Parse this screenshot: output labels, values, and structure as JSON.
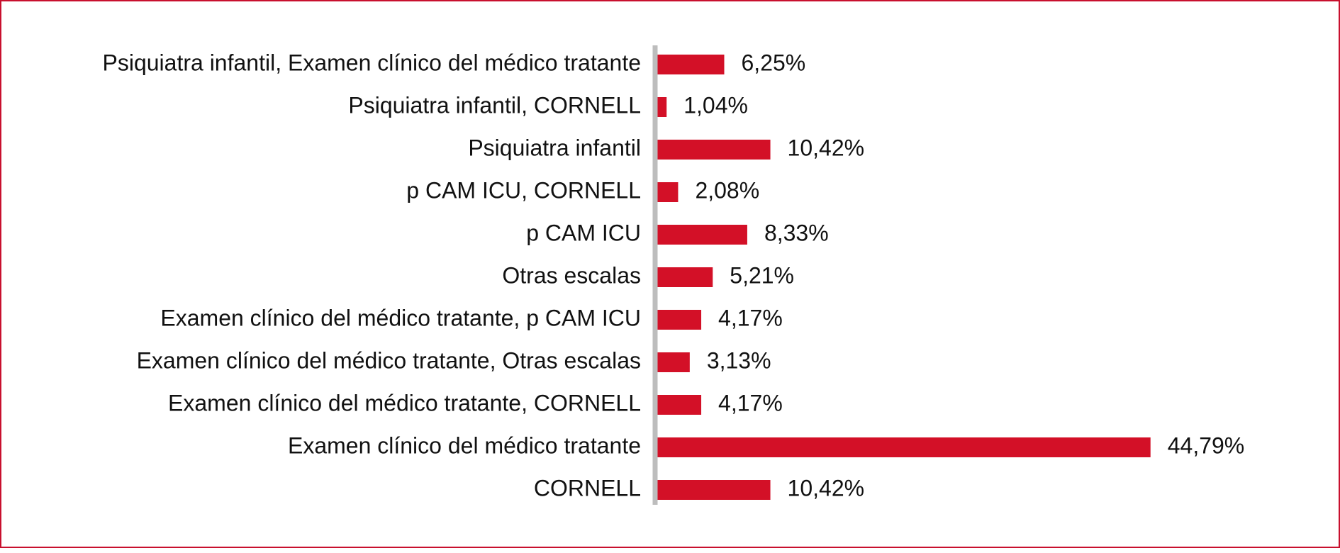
{
  "chart_data": {
    "type": "bar",
    "orientation": "horizontal",
    "title": "",
    "xlabel": "",
    "ylabel": "",
    "grid": false,
    "legend": "none",
    "xlim": [
      0,
      50
    ],
    "bar_color": "#d31027",
    "axis_color": "#bdbdbd",
    "border_color": "#c8102e",
    "categories": [
      "Psiquiatra infantil, Examen clínico del médico tratante",
      "Psiquiatra infantil, CORNELL",
      "Psiquiatra infantil",
      "p CAM ICU, CORNELL",
      "p CAM ICU",
      "Otras escalas",
      "Examen clínico del médico tratante, p CAM ICU",
      "Examen clínico del médico tratante, Otras escalas",
      "Examen clínico del médico tratante, CORNELL",
      "Examen clínico del médico tratante",
      "CORNELL"
    ],
    "values": [
      6.25,
      1.04,
      10.42,
      2.08,
      8.33,
      5.21,
      4.17,
      3.13,
      4.17,
      44.79,
      10.42
    ],
    "value_labels": [
      "6,25%",
      "1,04%",
      "10,42%",
      "2,08%",
      "8,33%",
      "5,21%",
      "4,17%",
      "3,13%",
      "4,17%",
      "44,79%",
      "10,42%"
    ]
  }
}
